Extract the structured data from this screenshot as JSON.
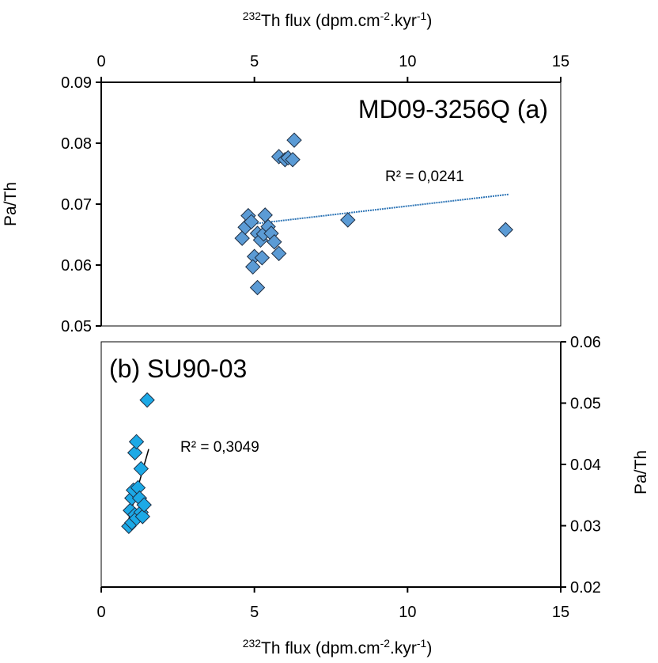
{
  "chart_data": [
    {
      "type": "scatter",
      "panel": "a",
      "title": "MD09-3256Q (a)",
      "xlabel": {
        "base": "Th flux (dpm.cm",
        "pre_sup": "232",
        "sup1": "-2",
        "mid": ".kyr",
        "sup2": "-1",
        "end": ")"
      },
      "ylabel": "Pa/Th",
      "xlim": [
        0,
        15
      ],
      "ylim": [
        0.05,
        0.09
      ],
      "x_ticks": [
        0,
        5,
        10,
        15
      ],
      "y_ticks": [
        0.05,
        0.06,
        0.07,
        0.08,
        0.09
      ],
      "y_tick_labels": [
        "0.05",
        "0.06",
        "0.07",
        "0.08",
        "0.09"
      ],
      "x_axis_position": "top",
      "y_axis_position": "left",
      "marker": "diamond",
      "color": "#5B9BD5",
      "points": [
        {
          "x": 4.6,
          "y": 0.0644
        },
        {
          "x": 4.7,
          "y": 0.0662
        },
        {
          "x": 4.8,
          "y": 0.0681
        },
        {
          "x": 4.9,
          "y": 0.0671
        },
        {
          "x": 5.0,
          "y": 0.0614
        },
        {
          "x": 4.95,
          "y": 0.0597
        },
        {
          "x": 5.1,
          "y": 0.0563
        },
        {
          "x": 5.1,
          "y": 0.0652
        },
        {
          "x": 5.2,
          "y": 0.0641
        },
        {
          "x": 5.25,
          "y": 0.0612
        },
        {
          "x": 5.3,
          "y": 0.0651
        },
        {
          "x": 5.35,
          "y": 0.0682
        },
        {
          "x": 5.45,
          "y": 0.0663
        },
        {
          "x": 5.55,
          "y": 0.0652
        },
        {
          "x": 5.65,
          "y": 0.0638
        },
        {
          "x": 5.8,
          "y": 0.0619
        },
        {
          "x": 5.8,
          "y": 0.0778
        },
        {
          "x": 6.0,
          "y": 0.0773
        },
        {
          "x": 6.1,
          "y": 0.0776
        },
        {
          "x": 6.25,
          "y": 0.0773
        },
        {
          "x": 6.3,
          "y": 0.0805
        },
        {
          "x": 8.05,
          "y": 0.0674
        },
        {
          "x": 13.2,
          "y": 0.0658
        }
      ],
      "trendline": {
        "x0": 4.7,
        "y0": 0.0666,
        "x1": 13.3,
        "y1": 0.0716,
        "color": "#2E75B6",
        "style": "dotted"
      },
      "annotation": "R² = 0,0241"
    },
    {
      "type": "scatter",
      "panel": "b",
      "title": "(b) SU90-03",
      "xlabel": {
        "base": "Th flux (dpm.cm",
        "pre_sup": "232",
        "sup1": "-2",
        "mid": ".kyr",
        "sup2": "-1",
        "end": ")"
      },
      "ylabel": "Pa/Th",
      "xlim": [
        0,
        15
      ],
      "ylim": [
        0.02,
        0.06
      ],
      "x_ticks": [
        0,
        5,
        10,
        15
      ],
      "y_ticks": [
        0.02,
        0.03,
        0.04,
        0.05,
        0.06
      ],
      "y_tick_labels": [
        "0.02",
        "0.03",
        "0.04",
        "0.05",
        "0.06"
      ],
      "x_axis_position": "bottom",
      "y_axis_position": "right",
      "marker": "diamond",
      "color": "#1CA9E6",
      "points": [
        {
          "x": 0.9,
          "y": 0.0299
        },
        {
          "x": 0.95,
          "y": 0.0325
        },
        {
          "x": 1.0,
          "y": 0.0305
        },
        {
          "x": 1.0,
          "y": 0.0345
        },
        {
          "x": 1.05,
          "y": 0.0358
        },
        {
          "x": 1.1,
          "y": 0.0318
        },
        {
          "x": 1.15,
          "y": 0.0312
        },
        {
          "x": 1.1,
          "y": 0.0419
        },
        {
          "x": 1.15,
          "y": 0.0437
        },
        {
          "x": 1.2,
          "y": 0.0362
        },
        {
          "x": 1.25,
          "y": 0.0345
        },
        {
          "x": 1.3,
          "y": 0.0393
        },
        {
          "x": 1.3,
          "y": 0.0322
        },
        {
          "x": 1.35,
          "y": 0.0315
        },
        {
          "x": 1.4,
          "y": 0.0334
        },
        {
          "x": 1.5,
          "y": 0.0505
        }
      ],
      "trendline": {
        "x0": 0.85,
        "y0": 0.0302,
        "x1": 1.55,
        "y1": 0.0425,
        "color": "#000000",
        "style": "solid"
      },
      "annotation": "R² = 0,3049"
    }
  ]
}
